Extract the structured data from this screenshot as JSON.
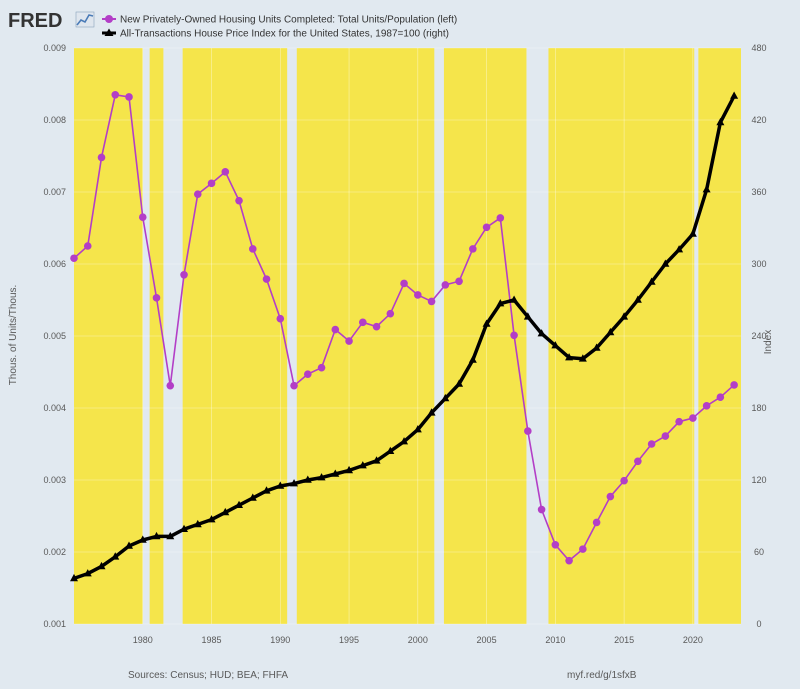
{
  "branding": {
    "logo": "FRED"
  },
  "legend": [
    {
      "label": "New Privately-Owned Housing Units Completed: Total Units/Population (left)",
      "color": "#b33ec7",
      "marker": "circle"
    },
    {
      "label": "All-Transactions House Price Index for the United States, 1987=100 (right)",
      "color": "#000000",
      "marker": "triangle"
    }
  ],
  "footer": {
    "sources": "Sources: Census; HUD; BEA; FHFA",
    "link": "myf.red/g/1sfxB"
  },
  "colors": {
    "background": "#e1e9f0",
    "expansion_band": "#f5e54b",
    "grid": "#ffffff"
  },
  "chart_data": {
    "type": "line",
    "xlim": [
      1975,
      2023.5
    ],
    "x_ticks": [
      "1980",
      "1985",
      "1990",
      "1995",
      "2000",
      "2005",
      "2010",
      "2015",
      "2020"
    ],
    "y_left": {
      "label": "Thous. of Units/Thous.",
      "ylim": [
        0.001,
        0.009
      ],
      "ticks": [
        "0.001",
        "0.002",
        "0.003",
        "0.004",
        "0.005",
        "0.006",
        "0.007",
        "0.008",
        "0.009"
      ]
    },
    "y_right": {
      "label": "Index",
      "ylim": [
        0,
        480
      ],
      "ticks": [
        "0",
        "60",
        "120",
        "180",
        "240",
        "300",
        "360",
        "420",
        "480"
      ]
    },
    "expansion_bands": [
      [
        1975.0,
        1980.0
      ],
      [
        1980.5,
        1981.5
      ],
      [
        1982.9,
        1990.5
      ],
      [
        1991.2,
        2001.2
      ],
      [
        2001.9,
        2007.9
      ],
      [
        2009.5,
        2020.1
      ],
      [
        2020.4,
        2023.5
      ]
    ],
    "grid": true,
    "legend_position": "top-left",
    "series": [
      {
        "name": "New Privately-Owned Housing Units Completed: Total Units/Population (left)",
        "axis": "left",
        "x": [
          1975,
          1976,
          1977,
          1978,
          1979,
          1980,
          1981,
          1982,
          1983,
          1984,
          1985,
          1986,
          1987,
          1988,
          1989,
          1990,
          1991,
          1992,
          1993,
          1994,
          1995,
          1996,
          1997,
          1998,
          1999,
          2000,
          2001,
          2002,
          2003,
          2004,
          2005,
          2006,
          2007,
          2008,
          2009,
          2010,
          2011,
          2012,
          2013,
          2014,
          2015,
          2016,
          2017,
          2018,
          2019,
          2020,
          2021,
          2022,
          2023
        ],
        "values": [
          0.00608,
          0.00625,
          0.00748,
          0.00835,
          0.00832,
          0.00665,
          0.00553,
          0.00431,
          0.00585,
          0.00697,
          0.00712,
          0.00728,
          0.00688,
          0.00621,
          0.00579,
          0.00524,
          0.00431,
          0.00447,
          0.00456,
          0.00509,
          0.00493,
          0.00519,
          0.00513,
          0.00531,
          0.00573,
          0.00557,
          0.00548,
          0.00571,
          0.00576,
          0.00621,
          0.00651,
          0.00664,
          0.00501,
          0.00368,
          0.00259,
          0.0021,
          0.00188,
          0.00204,
          0.00241,
          0.00277,
          0.00299,
          0.00326,
          0.0035,
          0.00361,
          0.00381,
          0.00386,
          0.00403,
          0.00415,
          0.00432
        ]
      },
      {
        "name": "All-Transactions House Price Index for the United States, 1987=100 (right)",
        "axis": "right",
        "x": [
          1975,
          1976,
          1977,
          1978,
          1979,
          1980,
          1981,
          1982,
          1983,
          1984,
          1985,
          1986,
          1987,
          1988,
          1989,
          1990,
          1991,
          1992,
          1993,
          1994,
          1995,
          1996,
          1997,
          1998,
          1999,
          2000,
          2001,
          2002,
          2003,
          2004,
          2005,
          2006,
          2007,
          2008,
          2009,
          2010,
          2011,
          2012,
          2013,
          2014,
          2015,
          2016,
          2017,
          2018,
          2019,
          2020,
          2021,
          2022,
          2023
        ],
        "values": [
          38,
          42,
          48,
          56,
          65,
          70,
          73,
          73,
          79,
          83,
          87,
          93,
          99,
          105,
          111,
          115,
          117,
          120,
          122,
          125,
          128,
          132,
          136,
          144,
          152,
          162,
          176,
          188,
          200,
          220,
          250,
          267,
          270,
          256,
          242,
          232,
          222,
          221,
          230,
          243,
          256,
          270,
          285,
          300,
          312,
          325,
          362,
          418,
          440
        ]
      }
    ]
  }
}
